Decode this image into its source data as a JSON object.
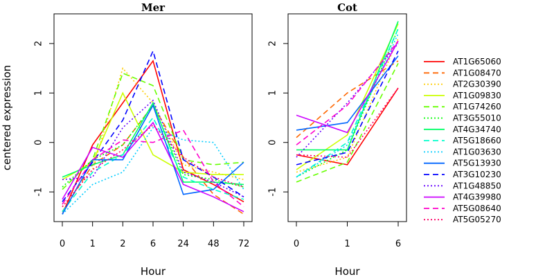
{
  "chart_data": [
    {
      "type": "line",
      "title": "Mer",
      "xlabel": "Hour",
      "ylabel": "centered expression",
      "categories": [
        "0",
        "1",
        "2",
        "6",
        "24",
        "48",
        "72"
      ],
      "ylim": [
        -1.6,
        2.6
      ],
      "yticks": [
        -1,
        0,
        1,
        2
      ],
      "series": [
        {
          "name": "AT1G65060",
          "values": [
            -1.45,
            -0.05,
            0.8,
            1.65,
            -0.55,
            -0.85,
            -1.2
          ]
        },
        {
          "name": "AT1G08470",
          "values": [
            -1.4,
            -0.45,
            -0.05,
            0.75,
            -0.3,
            -1.05,
            -1.45
          ]
        },
        {
          "name": "AT2G30390",
          "values": [
            -1.3,
            -0.55,
            1.5,
            0.8,
            -0.45,
            -0.6,
            -0.75
          ]
        },
        {
          "name": "AT1G09830",
          "values": [
            -0.75,
            -0.4,
            1.0,
            -0.25,
            -0.6,
            -0.65,
            -0.65
          ]
        },
        {
          "name": "AT1G74260",
          "values": [
            -0.95,
            -0.35,
            1.4,
            1.15,
            -0.35,
            -0.45,
            -0.4
          ]
        },
        {
          "name": "AT3G55010",
          "values": [
            -0.9,
            -0.35,
            -0.05,
            0.75,
            -0.65,
            -0.75,
            -0.9
          ]
        },
        {
          "name": "AT4G34740",
          "values": [
            -0.7,
            -0.45,
            -0.25,
            0.8,
            -0.8,
            -0.8,
            -0.85
          ]
        },
        {
          "name": "AT5G18660",
          "values": [
            -1.4,
            -0.6,
            -0.25,
            0.5,
            -0.7,
            -0.95,
            -1.15
          ]
        },
        {
          "name": "AT1G03630",
          "values": [
            -1.45,
            -0.85,
            -0.6,
            0.3,
            0.05,
            0.0,
            -0.95
          ]
        },
        {
          "name": "AT5G13930",
          "values": [
            -1.45,
            -0.35,
            -0.35,
            0.75,
            -1.05,
            -0.95,
            -0.4
          ]
        },
        {
          "name": "AT3G10230",
          "values": [
            -1.2,
            -0.4,
            0.45,
            1.85,
            -0.35,
            -0.7,
            -1.1
          ]
        },
        {
          "name": "AT1G48850",
          "values": [
            -0.75,
            -0.7,
            0.3,
            0.85,
            -0.6,
            -0.8,
            -1.1
          ]
        },
        {
          "name": "AT4G39980",
          "values": [
            -1.15,
            -0.1,
            -0.3,
            0.4,
            -0.85,
            -1.1,
            -1.4
          ]
        },
        {
          "name": "AT5G08640",
          "values": [
            -1.25,
            -0.35,
            0.05,
            0.0,
            0.25,
            -0.8,
            -1.3
          ]
        },
        {
          "name": "AT5G05270",
          "values": [
            -1.3,
            -0.55,
            -0.15,
            0.35,
            -0.3,
            -0.7,
            -0.9
          ]
        }
      ]
    },
    {
      "type": "line",
      "title": "Cot",
      "xlabel": "Hour",
      "ylabel": "",
      "categories": [
        "0",
        "1",
        "6"
      ],
      "ylim": [
        -1.6,
        2.6
      ],
      "yticks": [
        -1,
        0,
        1,
        2
      ],
      "series": [
        {
          "name": "AT1G65060",
          "values": [
            -0.25,
            -0.45,
            1.1
          ]
        },
        {
          "name": "AT1G08470",
          "values": [
            0.1,
            1.0,
            1.65
          ]
        },
        {
          "name": "AT2G30390",
          "values": [
            -0.6,
            -0.3,
            2.1
          ]
        },
        {
          "name": "AT1G09830",
          "values": [
            -0.55,
            0.15,
            2.4
          ]
        },
        {
          "name": "AT1G74260",
          "values": [
            -0.8,
            -0.4,
            1.6
          ]
        },
        {
          "name": "AT3G55010",
          "values": [
            -0.7,
            -0.15,
            2.3
          ]
        },
        {
          "name": "AT4G34740",
          "values": [
            -0.15,
            -0.15,
            2.45
          ]
        },
        {
          "name": "AT5G18660",
          "values": [
            -0.7,
            0.0,
            2.3
          ]
        },
        {
          "name": "AT1G03630",
          "values": [
            -0.7,
            -0.05,
            2.2
          ]
        },
        {
          "name": "AT5G13930",
          "values": [
            0.25,
            0.4,
            1.75
          ]
        },
        {
          "name": "AT3G10230",
          "values": [
            -0.45,
            -0.2,
            1.85
          ]
        },
        {
          "name": "AT1G48850",
          "values": [
            -0.3,
            0.8,
            2.0
          ]
        },
        {
          "name": "AT4G39980",
          "values": [
            0.55,
            0.2,
            2.05
          ]
        },
        {
          "name": "AT5G08640",
          "values": [
            -0.05,
            0.75,
            2.05
          ]
        },
        {
          "name": "AT5G05270",
          "values": [
            -0.25,
            -0.3,
            1.1
          ]
        }
      ]
    }
  ],
  "legend": {
    "placement": "right",
    "entries": [
      {
        "name": "AT1G65060",
        "color": "#ff0000",
        "dash": "solid"
      },
      {
        "name": "AT1G08470",
        "color": "#ff6600",
        "dash": "dashed"
      },
      {
        "name": "AT2G30390",
        "color": "#ffcc00",
        "dash": "dotted"
      },
      {
        "name": "AT1G09830",
        "color": "#ccff00",
        "dash": "solid"
      },
      {
        "name": "AT1G74260",
        "color": "#66ff00",
        "dash": "dashed"
      },
      {
        "name": "AT3G55010",
        "color": "#00ff00",
        "dash": "dotted"
      },
      {
        "name": "AT4G34740",
        "color": "#00ff66",
        "dash": "solid"
      },
      {
        "name": "AT5G18660",
        "color": "#00ffcc",
        "dash": "dashed"
      },
      {
        "name": "AT1G03630",
        "color": "#00ccff",
        "dash": "dotted"
      },
      {
        "name": "AT5G13930",
        "color": "#0066ff",
        "dash": "solid"
      },
      {
        "name": "AT3G10230",
        "color": "#0000ff",
        "dash": "dashed"
      },
      {
        "name": "AT1G48850",
        "color": "#6600ff",
        "dash": "dotted"
      },
      {
        "name": "AT4G39980",
        "color": "#cc00ff",
        "dash": "solid"
      },
      {
        "name": "AT5G08640",
        "color": "#ff00cc",
        "dash": "dashed"
      },
      {
        "name": "AT5G05270",
        "color": "#ff0066",
        "dash": "dotted"
      }
    ]
  }
}
